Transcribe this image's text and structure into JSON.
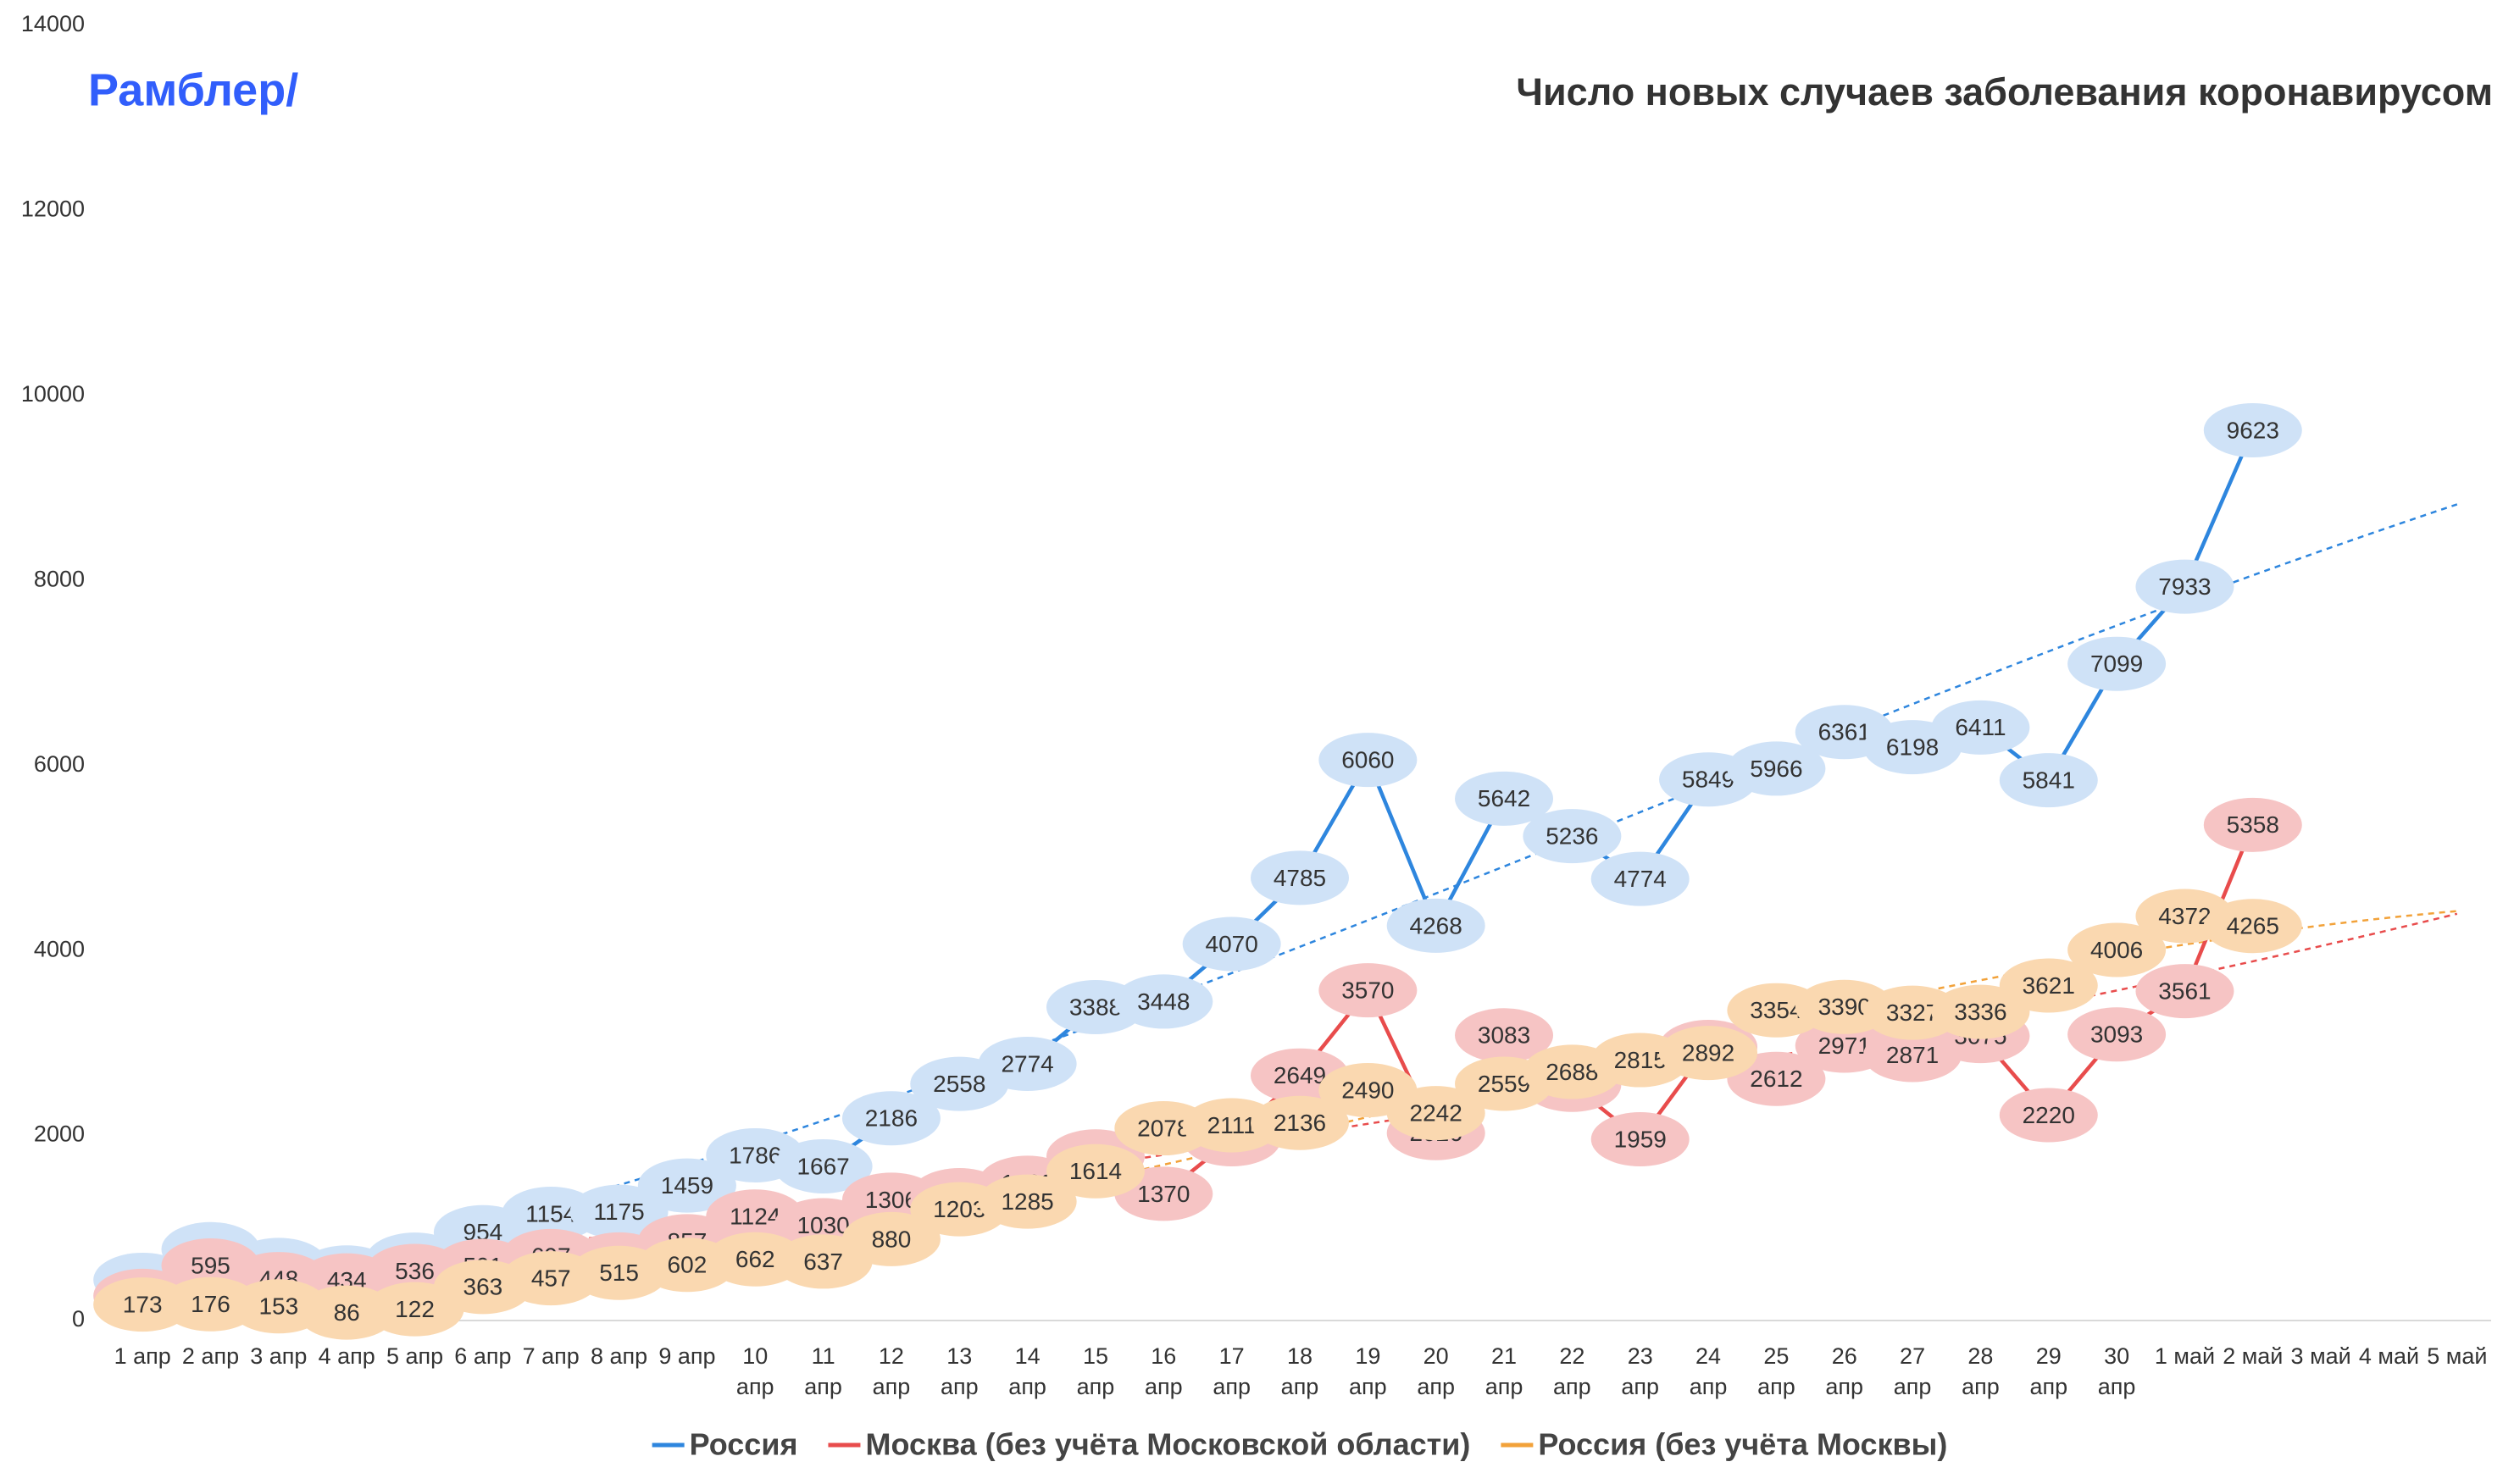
{
  "brand": "Рамблер/",
  "chart_data": {
    "type": "line",
    "title": "Число новых случаев заболевания коронавирусом",
    "categories": [
      "1 апр",
      "2 апр",
      "3 апр",
      "4 апр",
      "5 апр",
      "6 апр",
      "7 апр",
      "8 апр",
      "9 апр",
      "10 апр",
      "11 апр",
      "12 апр",
      "13 апр",
      "14 апр",
      "15 апр",
      "16 апр",
      "17 апр",
      "18 апр",
      "19 апр",
      "20 апр",
      "21 апр",
      "22 апр",
      "23 апр",
      "24 апр",
      "25 апр",
      "26 апр",
      "27 апр",
      "28 апр",
      "29 апр",
      "30 апр",
      "1 май",
      "2 май",
      "3 май",
      "4 май",
      "5 май"
    ],
    "series": [
      {
        "name": "Россия",
        "color": "#2e86de",
        "label_color": "#cfe2f7",
        "trendline": true,
        "values": [
          440,
          771,
          601,
          520,
          658,
          954,
          1154,
          1175,
          1459,
          1786,
          1667,
          2186,
          2558,
          2774,
          3388,
          3448,
          4070,
          4785,
          6060,
          4268,
          5642,
          5236,
          4774,
          5849,
          5966,
          6361,
          6198,
          6411,
          5841,
          7099,
          7933,
          9623,
          null,
          null,
          null
        ]
      },
      {
        "name": "Москва (без учёта Московской области)",
        "color": "#e84c4c",
        "label_color": "#f6c4c4",
        "trendline": true,
        "values": [
          267,
          595,
          448,
          434,
          536,
          591,
          697,
          660,
          857,
          1124,
          1030,
          1306,
          1355,
          1489,
          1774,
          1370,
          1959,
          2649,
          3570,
          2026,
          3083,
          2548,
          1959,
          2957,
          2612,
          2971,
          2871,
          3075,
          2220,
          3093,
          3561,
          5358,
          null,
          null,
          null
        ]
      },
      {
        "name": "Россия (без учёта Москвы)",
        "color": "#f2a23a",
        "label_color": "#fad8b0",
        "trendline": true,
        "values": [
          173,
          176,
          153,
          86,
          122,
          363,
          457,
          515,
          602,
          662,
          637,
          880,
          1203,
          1285,
          1614,
          2078,
          2111,
          2136,
          2490,
          2242,
          2559,
          2688,
          2815,
          2892,
          3354,
          3390,
          3327,
          3336,
          3621,
          4006,
          4372,
          4265,
          null,
          null,
          null
        ]
      }
    ],
    "ylim": [
      0,
      14000
    ],
    "yticks": [
      0,
      2000,
      4000,
      6000,
      8000,
      10000,
      12000,
      14000
    ],
    "grid": false,
    "legend": "bottom"
  }
}
